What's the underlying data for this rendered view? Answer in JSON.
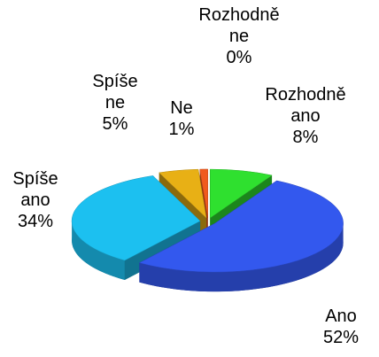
{
  "chart_data": {
    "type": "pie3d",
    "categories": [
      "Rozhodně ano",
      "Ano",
      "Spíše ano",
      "Spíše ne",
      "Ne",
      "Rozhodně ne"
    ],
    "values": [
      8,
      52,
      34,
      5,
      1,
      0
    ],
    "value_labels": [
      "8%",
      "52%",
      "34%",
      "5%",
      "1%",
      "0%"
    ],
    "colors": [
      "#2fe02f",
      "#3358ee",
      "#1cc0f0",
      "#e8b015",
      "#f05a1e",
      "#c03030"
    ]
  }
}
